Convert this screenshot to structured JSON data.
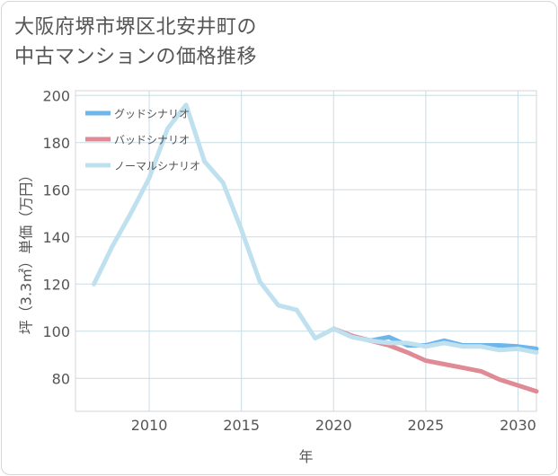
{
  "title_lines": [
    "大阪府堺市堺区北安井町の",
    "中古マンションの価格推移"
  ],
  "chart_data": {
    "type": "line",
    "title": "大阪府堺市堺区北安井町の中古マンションの価格推移",
    "xlabel": "年",
    "ylabel": "坪（3.3㎡）単価（万円）",
    "xlim": [
      2006,
      2031
    ],
    "ylim": [
      66,
      202
    ],
    "xticks": [
      2010,
      2015,
      2020,
      2025,
      2030
    ],
    "yticks": [
      80,
      100,
      120,
      140,
      160,
      180,
      200
    ],
    "legend_position": "top-left",
    "series": [
      {
        "name": "グッドシナリオ",
        "color": "#6cb6ea",
        "x": [
          2020,
          2021,
          2022,
          2023,
          2024,
          2025,
          2026,
          2027,
          2028,
          2029,
          2030,
          2031
        ],
        "y": [
          101,
          98,
          96,
          97.5,
          94,
          94,
          96,
          94,
          94,
          94,
          93.5,
          92.5
        ]
      },
      {
        "name": "バッドシナリオ",
        "color": "#e08a95",
        "x": [
          2020,
          2021,
          2022,
          2023,
          2024,
          2025,
          2026,
          2027,
          2028,
          2029,
          2030,
          2031
        ],
        "y": [
          101,
          98,
          96,
          94,
          91,
          87.5,
          86,
          84.5,
          83,
          79.5,
          77,
          74.5
        ]
      },
      {
        "name": "ノーマルシナリオ",
        "color": "#bfe0ee",
        "x": [
          2007,
          2008,
          2009,
          2010,
          2011,
          2012,
          2013,
          2014,
          2015,
          2016,
          2017,
          2018,
          2019,
          2020,
          2021,
          2022,
          2023,
          2024,
          2025,
          2026,
          2027,
          2028,
          2029,
          2030,
          2031
        ],
        "y": [
          120,
          136,
          150,
          165,
          186,
          196,
          172,
          163,
          143,
          121,
          111,
          109,
          97,
          101,
          97.5,
          96,
          95,
          95,
          93.5,
          95,
          93.5,
          93.5,
          92,
          92.5,
          91
        ]
      }
    ]
  }
}
